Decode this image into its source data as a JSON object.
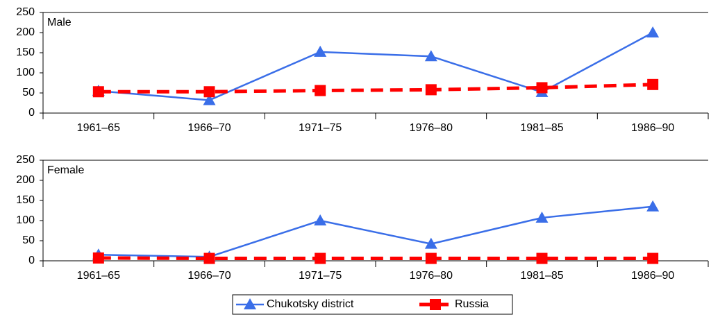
{
  "chart_data": [
    {
      "type": "line",
      "title": "Male",
      "categories": [
        "1961–65",
        "1966–70",
        "1971–75",
        "1976–80",
        "1981–85",
        "1986–90"
      ],
      "series": [
        {
          "name": "Chukotsky district",
          "color": "#3a6ee8",
          "marker": "triangle",
          "dashed": false,
          "values": [
            55,
            32,
            152,
            141,
            52,
            200
          ]
        },
        {
          "name": "Russia",
          "color": "#ff0000",
          "marker": "square",
          "dashed": true,
          "values": [
            53,
            53,
            56,
            58,
            63,
            71
          ]
        }
      ],
      "ylim": [
        0,
        250
      ],
      "yticks": [
        0,
        50,
        100,
        150,
        200,
        250
      ],
      "grid": false
    },
    {
      "type": "line",
      "title": "Female",
      "categories": [
        "1961–65",
        "1966–70",
        "1971–75",
        "1976–80",
        "1981–85",
        "1986–90"
      ],
      "series": [
        {
          "color": "#3a6ee8",
          "marker": "triangle",
          "dashed": false,
          "values": [
            15,
            10,
            100,
            42,
            107,
            135
          ]
        },
        {
          "color": "#ff0000",
          "marker": "square",
          "dashed": true,
          "values": [
            7,
            6,
            6,
            6,
            6,
            6
          ]
        }
      ],
      "ylim": [
        0,
        250
      ],
      "yticks": [
        0,
        50,
        100,
        150,
        200,
        250
      ],
      "grid": false
    }
  ]
}
